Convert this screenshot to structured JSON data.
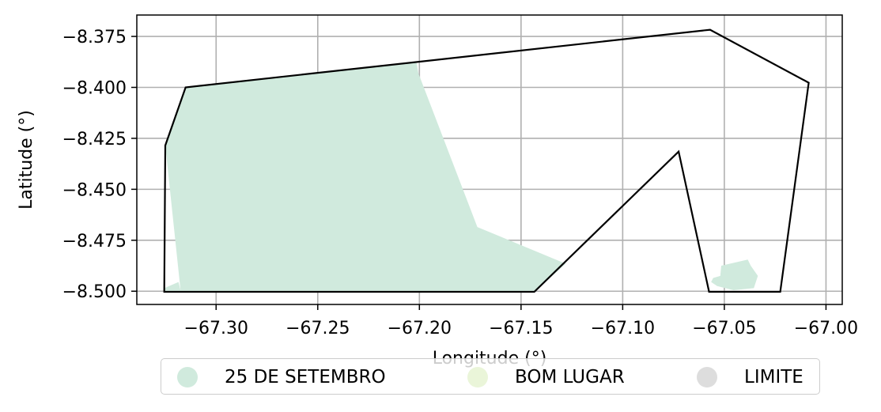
{
  "chart_data": {
    "type": "map",
    "xlabel": "Longitude (°)",
    "ylabel": "Latitude (°)",
    "xlim": [
      -67.339,
      -66.992
    ],
    "ylim": [
      -8.5065,
      -8.3645
    ],
    "grid": true,
    "x_ticks": [
      -67.3,
      -67.25,
      -67.2,
      -67.15,
      -67.1,
      -67.05,
      -67.0
    ],
    "x_tick_labels": [
      "−67.30",
      "−67.25",
      "−67.20",
      "−67.15",
      "−67.10",
      "−67.05",
      "−67.00"
    ],
    "y_ticks": [
      -8.375,
      -8.4,
      -8.425,
      -8.45,
      -8.475,
      -8.5
    ],
    "y_tick_labels": [
      "−8.375",
      "−8.400",
      "−8.425",
      "−8.450",
      "−8.475",
      "−8.500"
    ],
    "legend_position": "bottom-center",
    "regions": [
      {
        "name": "25 DE SETEMBRO",
        "color": "#d0eadd",
        "polygons": [
          [
            [
              -67.3255,
              -8.5003
            ],
            [
              -67.3255,
              -8.4985
            ],
            [
              -67.3185,
              -8.4955
            ],
            [
              -67.3175,
              -8.4995
            ],
            [
              -67.325,
              -8.4285
            ],
            [
              -67.315,
              -8.4
            ],
            [
              -67.2015,
              -8.3875
            ],
            [
              -67.2005,
              -8.393
            ],
            [
              -67.1715,
              -8.4685
            ],
            [
              -67.128,
              -8.4865
            ],
            [
              -67.1435,
              -8.5003
            ]
          ],
          [
            [
              -67.0565,
              -8.4955
            ],
            [
              -67.0555,
              -8.4935
            ],
            [
              -67.052,
              -8.4925
            ],
            [
              -67.0515,
              -8.4875
            ],
            [
              -67.0385,
              -8.4845
            ],
            [
              -67.037,
              -8.4875
            ],
            [
              -67.0335,
              -8.4925
            ],
            [
              -67.0355,
              -8.4985
            ],
            [
              -67.0455,
              -8.4995
            ],
            [
              -67.0535,
              -8.4975
            ]
          ]
        ]
      },
      {
        "name": "BOM LUGAR",
        "color": "#eaf5d9",
        "polygons": []
      },
      {
        "name": "LIMITE",
        "color": "#dddddd",
        "outline": true,
        "polygons": [
          [
            [
              -67.3255,
              -8.5003
            ],
            [
              -67.325,
              -8.4285
            ],
            [
              -67.315,
              -8.4
            ],
            [
              -67.057,
              -8.3717
            ],
            [
              -67.0085,
              -8.3977
            ],
            [
              -67.0225,
              -8.5003
            ],
            [
              -67.0575,
              -8.5003
            ],
            [
              -67.0725,
              -8.4315
            ],
            [
              -67.1435,
              -8.5003
            ]
          ]
        ]
      }
    ]
  }
}
